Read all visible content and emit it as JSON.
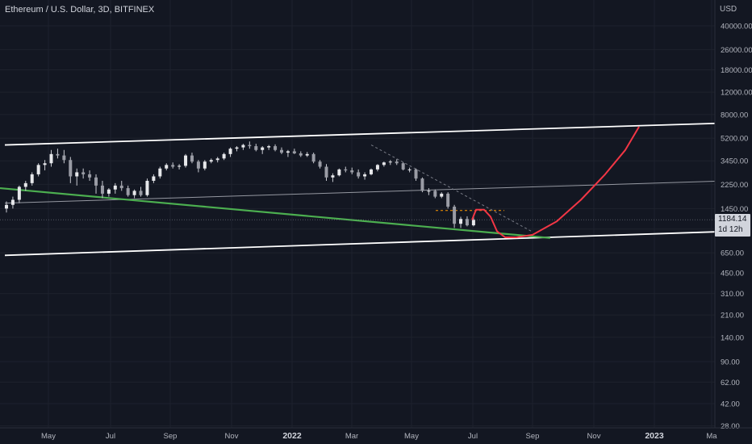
{
  "header": {
    "symbol": "Ethereum / U.S. Dollar, 3D, BITFINEX"
  },
  "price_scale": {
    "currency": "USD"
  },
  "last_price": {
    "value": "1184.14",
    "countdown": "1d 12h"
  },
  "colors": {
    "background": "#131722",
    "candle": "#c8cad1",
    "channel": "#ffffff",
    "mid_line": "#9598a1",
    "support": "#4caf50",
    "projection": "#f23645",
    "dashed_trend": "#787b86",
    "dashed_level": "#ff9800"
  },
  "chart_data": {
    "type": "candlestick",
    "y_scale": "log",
    "y_ticks": [
      "40000.00",
      "26000.00",
      "18000.00",
      "12000.00",
      "8000.00",
      "5200.00",
      "3450.00",
      "2250.00",
      "1450.00",
      "1000.00",
      "650.00",
      "450.00",
      "310.00",
      "210.00",
      "140.00",
      "90.00",
      "62.00",
      "42.00",
      "28.00"
    ],
    "x_ticks": [
      "May",
      "Jul",
      "Sep",
      "Nov",
      "2022",
      "Mar",
      "May",
      "Jul",
      "Sep",
      "Nov",
      "2023",
      "Ma"
    ],
    "series": [
      {
        "values": [
          [
            1450,
            1650,
            1350,
            1550
          ],
          [
            1550,
            1800,
            1450,
            1700
          ],
          [
            1700,
            2200,
            1600,
            2150
          ],
          [
            2150,
            2400,
            2000,
            2300
          ],
          [
            2300,
            2800,
            2200,
            2700
          ],
          [
            2700,
            3300,
            2600,
            3200
          ],
          [
            3200,
            3500,
            2900,
            3300
          ],
          [
            3300,
            4200,
            3100,
            3900
          ],
          [
            3900,
            4300,
            3600,
            3800
          ],
          [
            3800,
            4200,
            3300,
            3500
          ],
          [
            3500,
            3700,
            2300,
            2600
          ],
          [
            2600,
            3000,
            2200,
            2800
          ],
          [
            2800,
            3000,
            2500,
            2700
          ],
          [
            2700,
            2900,
            2400,
            2550
          ],
          [
            2550,
            2700,
            1900,
            2200
          ],
          [
            2200,
            2400,
            1750,
            1900
          ],
          [
            1900,
            2100,
            1800,
            2050
          ],
          [
            2050,
            2300,
            1900,
            2200
          ],
          [
            2200,
            2400,
            2000,
            2100
          ],
          [
            2100,
            2200,
            1800,
            1850
          ],
          [
            1850,
            2050,
            1750,
            2000
          ],
          [
            2000,
            2150,
            1800,
            1850
          ],
          [
            1850,
            2500,
            1800,
            2400
          ],
          [
            2400,
            2700,
            2300,
            2600
          ],
          [
            2600,
            3100,
            2500,
            3000
          ],
          [
            3000,
            3300,
            2900,
            3200
          ],
          [
            3200,
            3350,
            3000,
            3100
          ],
          [
            3100,
            3250,
            2950,
            3150
          ],
          [
            3150,
            3900,
            3050,
            3800
          ],
          [
            3800,
            4000,
            3300,
            3400
          ],
          [
            3400,
            3500,
            2800,
            3000
          ],
          [
            3000,
            3500,
            2900,
            3400
          ],
          [
            3400,
            3600,
            3300,
            3500
          ],
          [
            3500,
            3700,
            3350,
            3600
          ],
          [
            3600,
            4000,
            3500,
            3900
          ],
          [
            3900,
            4400,
            3700,
            4300
          ],
          [
            4300,
            4500,
            4100,
            4400
          ],
          [
            4400,
            4700,
            4200,
            4600
          ],
          [
            4600,
            4900,
            4300,
            4500
          ],
          [
            4500,
            4700,
            4100,
            4200
          ],
          [
            4200,
            4500,
            3900,
            4400
          ],
          [
            4400,
            4600,
            4200,
            4500
          ],
          [
            4500,
            4650,
            4100,
            4200
          ],
          [
            4200,
            4400,
            3900,
            4000
          ],
          [
            4000,
            4200,
            3700,
            4100
          ],
          [
            4100,
            4300,
            3900,
            3950
          ],
          [
            3950,
            4100,
            3700,
            3800
          ],
          [
            3800,
            4050,
            3700,
            3900
          ],
          [
            3900,
            4000,
            3300,
            3400
          ],
          [
            3400,
            3500,
            3000,
            3100
          ],
          [
            3100,
            3250,
            2400,
            2550
          ],
          [
            2550,
            2750,
            2350,
            2650
          ],
          [
            2650,
            3000,
            2600,
            2950
          ],
          [
            2950,
            3100,
            2800,
            2900
          ],
          [
            2900,
            3050,
            2700,
            2800
          ],
          [
            2800,
            2950,
            2500,
            2600
          ],
          [
            2600,
            2800,
            2450,
            2700
          ],
          [
            2700,
            3000,
            2650,
            2950
          ],
          [
            2950,
            3250,
            2850,
            3200
          ],
          [
            3200,
            3400,
            3100,
            3350
          ],
          [
            3350,
            3500,
            3200,
            3400
          ],
          [
            3400,
            3550,
            3200,
            3300
          ],
          [
            3300,
            3350,
            2900,
            2950
          ],
          [
            2950,
            3050,
            2800,
            2950
          ],
          [
            2950,
            3000,
            2400,
            2500
          ],
          [
            2500,
            2550,
            1950,
            2000
          ],
          [
            2000,
            2100,
            1850,
            2000
          ],
          [
            2000,
            2050,
            1750,
            1800
          ],
          [
            1800,
            1950,
            1750,
            1900
          ],
          [
            1900,
            1950,
            1450,
            1500
          ],
          [
            1500,
            1550,
            1020,
            1100
          ],
          [
            1100,
            1250,
            1020,
            1200
          ],
          [
            1200,
            1260,
            1050,
            1070
          ],
          [
            1070,
            1250,
            1050,
            1180
          ]
        ]
      }
    ],
    "annotations": [
      {
        "name": "channel-upper",
        "x0": "Apr 2021",
        "y0": 4600,
        "x1": "Jan 2023",
        "y1": 6800
      },
      {
        "name": "channel-lower",
        "x0": "Apr 2021",
        "y0": 620,
        "x1": "Jan 2023",
        "y1": 950
      },
      {
        "name": "channel-mid",
        "x0": "Apr 2021",
        "y0": 1600,
        "x1": "Jan 2023",
        "y1": 2380
      },
      {
        "name": "support-line",
        "x0": "Apr 2021",
        "y0": 2100,
        "x1": "Sep 2022",
        "y1": 850
      },
      {
        "name": "descending-trend",
        "x0": "Feb 2022",
        "y0": 4600,
        "x1": "Aug 2022",
        "y1": 950
      },
      {
        "name": "resistance-level",
        "y": 1400
      },
      {
        "name": "projection-path"
      }
    ]
  }
}
